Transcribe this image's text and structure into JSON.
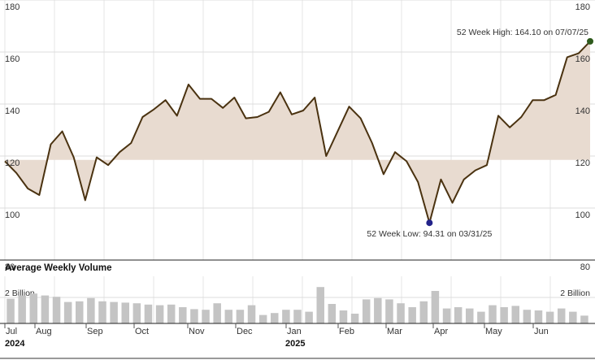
{
  "chart_data": {
    "type": "line",
    "price": {
      "y_ticks": [
        80,
        100,
        120,
        140,
        160,
        180
      ],
      "ylim": [
        80,
        180
      ],
      "baseline": 118.5,
      "values": [
        118.0,
        113.5,
        107.5,
        105.0,
        124.5,
        129.5,
        119.5,
        103.0,
        119.5,
        116.5,
        121.5,
        125.0,
        135.0,
        138.0,
        141.5,
        135.5,
        147.5,
        142.0,
        142.0,
        138.5,
        142.5,
        134.5,
        135.0,
        137.0,
        144.5,
        136.0,
        137.5,
        142.5,
        120.0,
        129.5,
        139.0,
        134.5,
        125.0,
        113.0,
        121.5,
        118.0,
        110.0,
        94.31,
        111.0,
        102.0,
        111.0,
        114.5,
        116.5,
        135.5,
        131.0,
        135.0,
        141.5,
        141.5,
        143.5,
        158.0,
        159.5,
        164.1
      ],
      "high_annotation": "52 Week High: 164.10 on 07/07/25",
      "low_annotation": "52 Week Low: 94.31 on 03/31/25",
      "line_color": "#4a3210",
      "fill_color": "#e8dbd0",
      "high_marker_color": "#2e5a1c",
      "low_marker_color": "#23238a"
    },
    "volume": {
      "title": "Average Weekly Volume",
      "label_left": "2 Billion",
      "label_right": "2 Billion",
      "reference_level": 2.0,
      "ymax": 3.5,
      "bar_color": "#c4c4c4",
      "values": [
        1.9,
        2.15,
        2.3,
        2.15,
        2.05,
        1.65,
        1.7,
        1.95,
        1.7,
        1.65,
        1.6,
        1.55,
        1.45,
        1.4,
        1.45,
        1.25,
        1.1,
        1.05,
        1.55,
        1.05,
        1.05,
        1.4,
        0.65,
        0.8,
        1.05,
        1.05,
        0.9,
        2.8,
        1.5,
        1.0,
        0.75,
        1.85,
        1.95,
        1.85,
        1.55,
        1.25,
        1.7,
        2.5,
        1.15,
        1.25,
        1.15,
        0.9,
        1.4,
        1.25,
        1.35,
        1.05,
        1.0,
        0.9,
        1.15,
        0.9,
        0.6
      ]
    },
    "x_axis": {
      "months": [
        "Jul",
        "Aug",
        "Sep",
        "Oct",
        "Nov",
        "Dec",
        "Jan",
        "Feb",
        "Mar",
        "Apr",
        "May",
        "Jun"
      ],
      "years": [
        "2024",
        "2025"
      ]
    }
  }
}
